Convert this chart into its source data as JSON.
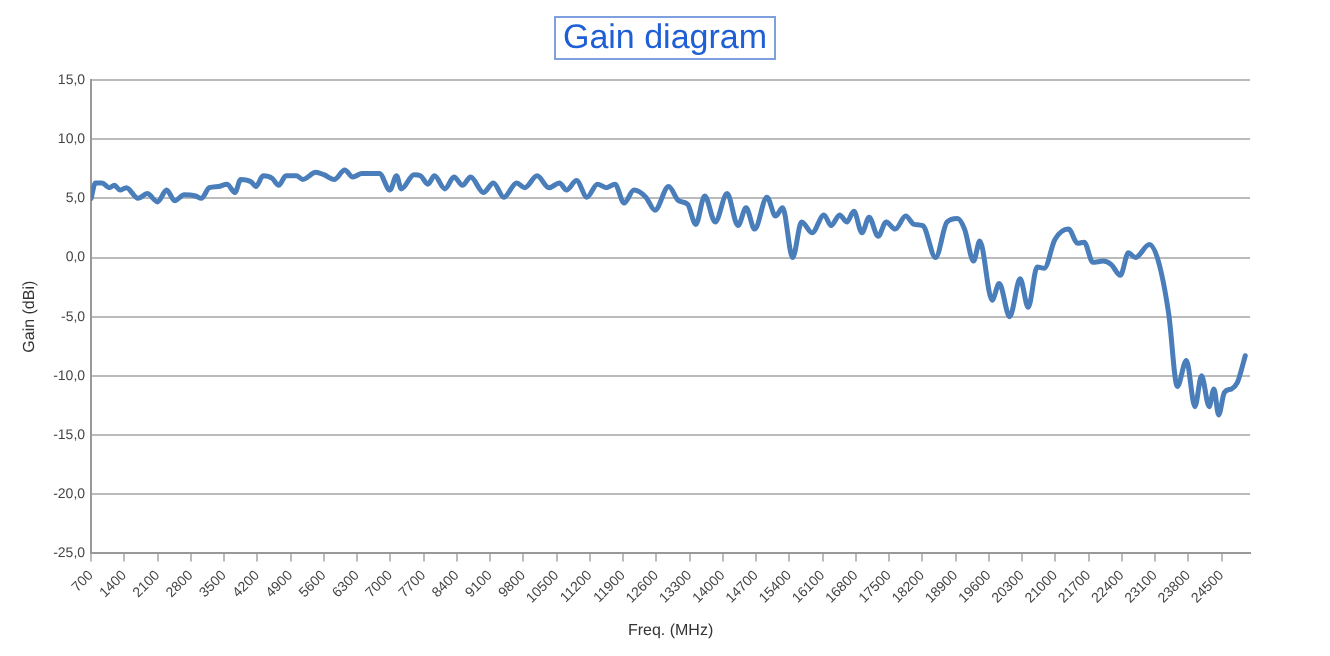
{
  "chart_data": {
    "type": "line",
    "title": "Gain diagram",
    "xlabel": "Freq. (MHz)",
    "ylabel": "Gain (dBi)",
    "xlim": [
      700,
      25100
    ],
    "xticks": [
      700,
      1400,
      2100,
      2800,
      3500,
      4200,
      4900,
      5600,
      6300,
      7000,
      7700,
      8400,
      9100,
      9800,
      10500,
      11200,
      11900,
      12600,
      13300,
      14000,
      14700,
      15400,
      16100,
      16800,
      17500,
      18200,
      18900,
      19600,
      20300,
      21000,
      21700,
      22400,
      23100,
      23800,
      24500
    ],
    "ylim": [
      -25,
      15
    ],
    "yticks": [
      {
        "value": -25,
        "label": "-25,0"
      },
      {
        "value": -20,
        "label": "-20,0"
      },
      {
        "value": -15,
        "label": "-15,0"
      },
      {
        "value": -10,
        "label": "-10,0"
      },
      {
        "value": -5,
        "label": "-5,0"
      },
      {
        "value": 0,
        "label": "0,0"
      },
      {
        "value": 5,
        "label": "5,0"
      },
      {
        "value": 10,
        "label": "10,0"
      },
      {
        "value": 15,
        "label": "15,0"
      }
    ],
    "grid": "y",
    "marker": "none",
    "line_style": "solid",
    "series": [
      {
        "color": "#4a7ebb",
        "x": [
          700,
          790,
          930,
          1080,
          1190,
          1310,
          1440,
          1690,
          1880,
          2100,
          2290,
          2460,
          2660,
          2900,
          3020,
          3190,
          3380,
          3560,
          3730,
          3850,
          4070,
          4170,
          4320,
          4510,
          4650,
          4800,
          5020,
          5160,
          5430,
          5600,
          5820,
          6040,
          6210,
          6400,
          6770,
          6990,
          7130,
          7230,
          7500,
          7640,
          7790,
          7930,
          8150,
          8340,
          8520,
          8690,
          8960,
          9170,
          9390,
          9660,
          9830,
          10090,
          10340,
          10560,
          10710,
          10920,
          11140,
          11360,
          11550,
          11730,
          11920,
          12130,
          12380,
          12570,
          12860,
          13070,
          13260,
          13430,
          13620,
          13840,
          14090,
          14320,
          14490,
          14670,
          14930,
          15110,
          15260,
          15470,
          15660,
          15880,
          16130,
          16280,
          16460,
          16610,
          16760,
          16930,
          17080,
          17270,
          17440,
          17630,
          17850,
          18030,
          18210,
          18480,
          18720,
          18940,
          19090,
          19280,
          19410,
          19670,
          19820,
          20040,
          20260,
          20430,
          20620,
          20770,
          20990,
          21280,
          21470,
          21610,
          21790,
          22010,
          22180,
          22370,
          22540,
          22690,
          22980,
          23170,
          23390,
          23570,
          23760,
          23940,
          24080,
          24240,
          24340,
          24440,
          24560,
          24710,
          24830,
          24890,
          25000
        ],
        "values": [
          5.0,
          6.3,
          6.3,
          5.9,
          6.1,
          5.7,
          5.9,
          5.0,
          5.4,
          4.7,
          5.7,
          4.8,
          5.3,
          5.2,
          5.0,
          5.9,
          6.0,
          6.2,
          5.5,
          6.6,
          6.4,
          6.0,
          6.9,
          6.7,
          6.1,
          6.9,
          6.9,
          6.6,
          7.2,
          7.0,
          6.6,
          7.4,
          6.8,
          7.1,
          7.1,
          5.7,
          6.9,
          5.8,
          7.0,
          6.9,
          6.2,
          6.9,
          5.8,
          6.8,
          6.1,
          6.8,
          5.5,
          6.3,
          5.1,
          6.3,
          5.9,
          6.9,
          5.9,
          6.3,
          5.7,
          6.5,
          5.1,
          6.2,
          5.9,
          6.2,
          4.6,
          5.7,
          5.1,
          4.0,
          6.0,
          4.8,
          4.5,
          2.8,
          5.2,
          3.0,
          5.4,
          2.7,
          4.2,
          2.4,
          5.1,
          3.5,
          4.2,
          0.0,
          3.0,
          2.1,
          3.6,
          2.7,
          3.6,
          3.0,
          3.9,
          2.1,
          3.4,
          1.8,
          3.0,
          2.4,
          3.5,
          2.8,
          2.7,
          0.0,
          3.0,
          3.3,
          2.4,
          -0.3,
          1.4,
          -3.6,
          -2.2,
          -5.0,
          -1.8,
          -4.2,
          -0.8,
          -0.9,
          1.5,
          2.4,
          1.2,
          1.3,
          -0.4,
          -0.3,
          -0.6,
          -1.5,
          0.4,
          0.0,
          1.1,
          -0.3,
          -4.8,
          -10.9,
          -8.7,
          -12.6,
          -10.0,
          -12.6,
          -11.1,
          -13.3,
          -11.4,
          -11.1,
          -10.6,
          -9.9,
          -8.3
        ]
      }
    ]
  }
}
